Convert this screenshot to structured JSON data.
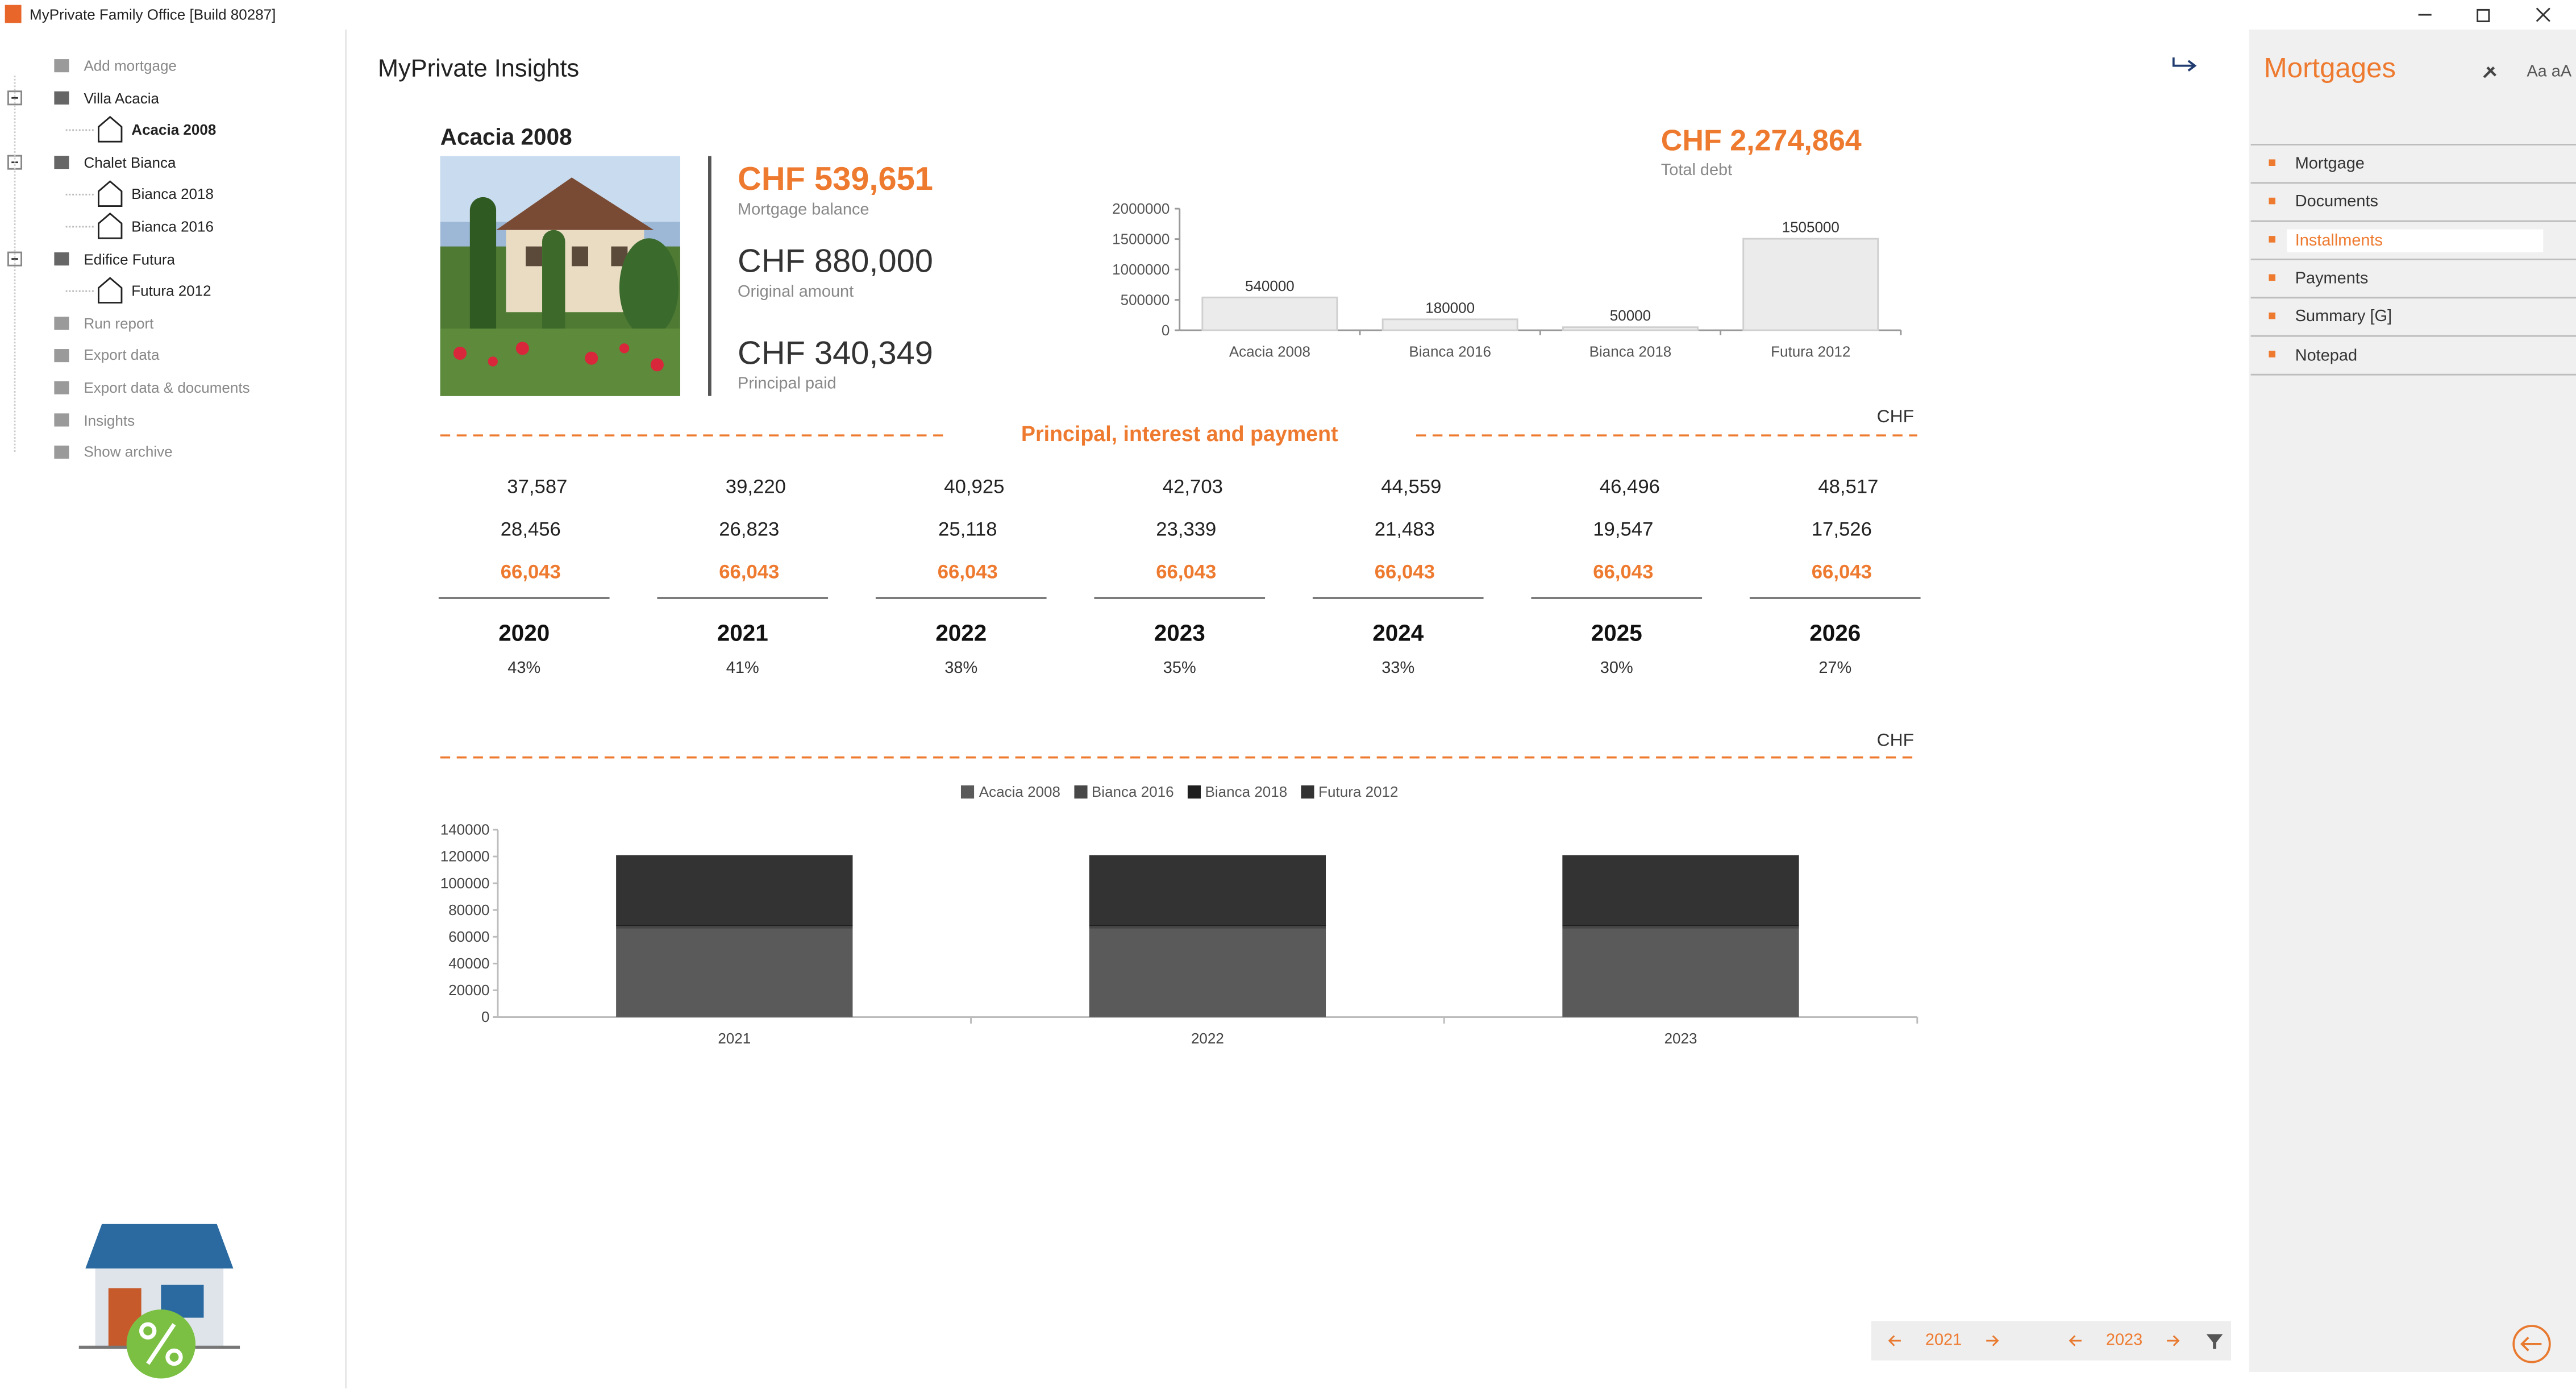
{
  "window": {
    "title": "MyPrivate Family Office [Build 80287]"
  },
  "sidebar": {
    "items": [
      "Add mortgage",
      "Villa Acacia",
      "Acacia 2008",
      "Chalet Bianca",
      "Bianca 2018",
      "Bianca 2016",
      "Edifice Futura",
      "Futura 2012",
      "Run report",
      "Export data",
      "Export data & documents",
      "Insights",
      "Show archive"
    ],
    "selected_item": 2
  },
  "header": {
    "title": "MyPrivate Insights"
  },
  "property": {
    "name": "Acacia 2008",
    "balance": "CHF 539,651",
    "balance_label": "Mortgage balance",
    "original": "CHF 880,000",
    "original_label": "Original amount",
    "paid": "CHF 340,349",
    "paid_label": "Principal paid"
  },
  "total_debt": {
    "value": "CHF 2,274,864",
    "label": "Total debt"
  },
  "chart_data": [
    {
      "type": "bar",
      "categories": [
        "Acacia 2008",
        "Bianca 2016",
        "Bianca 2018",
        "Futura 2012"
      ],
      "values": [
        540000,
        180000,
        50000,
        1505000
      ],
      "color": "#ebebeb",
      "ylim": [
        0,
        2000000
      ],
      "yticks": [
        0,
        500000,
        1000000,
        1500000,
        2000000
      ]
    },
    {
      "type": "stacked_bar",
      "annotation": "CHF",
      "categories": [
        "2021",
        "2022",
        "2023"
      ],
      "series": [
        {
          "name": "Acacia 2008",
          "color": "#5a5a5a",
          "values": [
            66000,
            66000,
            66000
          ]
        },
        {
          "name": "Bianca 2016",
          "color": "#474747",
          "values": [
            2000,
            2000,
            2000
          ]
        },
        {
          "name": "Bianca 2018",
          "color": "#1f1f1f",
          "values": [
            1000,
            1000,
            1000
          ]
        },
        {
          "name": "Futura 2012",
          "color": "#333333",
          "values": [
            52000,
            52000,
            52000
          ]
        }
      ],
      "ylim": [
        0,
        140000
      ],
      "yticks": [
        0,
        20000,
        40000,
        60000,
        80000,
        100000,
        120000,
        140000
      ]
    }
  ],
  "schedule": {
    "title": "Principal, interest and payment",
    "currency": "CHF",
    "columns": [
      {
        "principal": "37,587",
        "interest": "28,456",
        "payment": "66,043",
        "year": "2020",
        "ratio": "43%"
      },
      {
        "principal": "39,220",
        "interest": "26,823",
        "payment": "66,043",
        "year": "2021",
        "ratio": "41%"
      },
      {
        "principal": "40,925",
        "interest": "25,118",
        "payment": "66,043",
        "year": "2022",
        "ratio": "38%"
      },
      {
        "principal": "42,703",
        "interest": "23,339",
        "payment": "66,043",
        "year": "2023",
        "ratio": "35%"
      },
      {
        "principal": "44,559",
        "interest": "21,483",
        "payment": "66,043",
        "year": "2024",
        "ratio": "33%"
      },
      {
        "principal": "46,496",
        "interest": "19,547",
        "payment": "66,043",
        "year": "2025",
        "ratio": "30%"
      },
      {
        "principal": "48,517",
        "interest": "17,526",
        "payment": "66,043",
        "year": "2026",
        "ratio": "27%"
      }
    ]
  },
  "side_panel": {
    "title": "Mortgages",
    "font_toggle": "Aa aA",
    "items": [
      "Mortgage",
      "Documents",
      "Installments",
      "Payments",
      "Summary [G]",
      "Notepad"
    ],
    "active_item": 2
  },
  "navigation": {
    "from": "2021",
    "to": "2023"
  }
}
